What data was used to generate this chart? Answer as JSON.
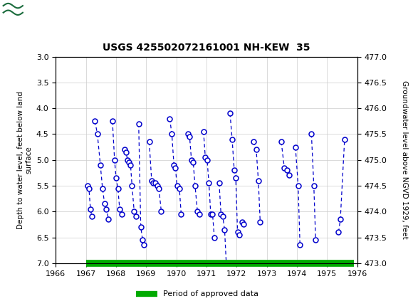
{
  "title": "USGS 425502072161001 NH-KEW  35",
  "header_color": "#1a6b3c",
  "left_ylabel": "Depth to water level, feet below land\nsurface",
  "right_ylabel": "Groundwater level above NGVD 1929, feet",
  "xlim": [
    1966,
    1976
  ],
  "ylim_left_bottom": 7.0,
  "ylim_left_top": 3.0,
  "ylim_right_bottom": 473.0,
  "ylim_right_top": 477.0,
  "xticks": [
    1966,
    1967,
    1968,
    1969,
    1970,
    1971,
    1972,
    1973,
    1974,
    1975,
    1976
  ],
  "yticks_left": [
    3.0,
    3.5,
    4.0,
    4.5,
    5.0,
    5.5,
    6.0,
    6.5,
    7.0
  ],
  "yticks_right": [
    473.0,
    473.5,
    474.0,
    474.5,
    475.0,
    475.5,
    476.0,
    476.5,
    477.0
  ],
  "line_color": "#0000cc",
  "legend_label": "Period of approved data",
  "legend_color": "#00aa00",
  "approved_xstart": 1967.0,
  "approved_xend": 1975.9,
  "segments": [
    [
      [
        1967.05,
        5.5
      ],
      [
        1967.1,
        5.55
      ],
      [
        1967.15,
        5.95
      ],
      [
        1967.2,
        6.1
      ]
    ],
    [
      [
        1967.3,
        4.25
      ],
      [
        1967.38,
        4.5
      ],
      [
        1967.48,
        5.1
      ],
      [
        1967.55,
        5.55
      ],
      [
        1967.62,
        5.85
      ],
      [
        1967.68,
        5.95
      ],
      [
        1967.75,
        6.15
      ]
    ],
    [
      [
        1967.88,
        4.25
      ],
      [
        1967.95,
        5.0
      ],
      [
        1968.0,
        5.35
      ],
      [
        1968.06,
        5.55
      ],
      [
        1968.12,
        5.95
      ],
      [
        1968.18,
        6.05
      ]
    ],
    [
      [
        1968.28,
        4.8
      ],
      [
        1968.33,
        4.85
      ],
      [
        1968.38,
        5.0
      ],
      [
        1968.43,
        5.05
      ],
      [
        1968.48,
        5.1
      ],
      [
        1968.53,
        5.5
      ],
      [
        1968.6,
        6.0
      ],
      [
        1968.65,
        6.1
      ]
    ],
    [
      [
        1968.75,
        4.3
      ],
      [
        1968.82,
        6.3
      ],
      [
        1968.88,
        6.55
      ],
      [
        1968.93,
        6.65
      ]
    ],
    [
      [
        1969.1,
        4.65
      ],
      [
        1969.18,
        5.4
      ],
      [
        1969.24,
        5.45
      ],
      [
        1969.3,
        5.45
      ],
      [
        1969.36,
        5.5
      ],
      [
        1969.42,
        5.55
      ],
      [
        1969.5,
        6.0
      ]
    ],
    [
      [
        1969.78,
        4.2
      ],
      [
        1969.85,
        4.5
      ],
      [
        1969.92,
        5.1
      ],
      [
        1969.97,
        5.15
      ],
      [
        1970.02,
        5.5
      ],
      [
        1970.1,
        5.55
      ],
      [
        1970.16,
        6.05
      ]
    ],
    [
      [
        1970.38,
        4.5
      ],
      [
        1970.44,
        4.55
      ],
      [
        1970.5,
        5.0
      ],
      [
        1970.56,
        5.05
      ],
      [
        1970.62,
        5.5
      ],
      [
        1970.7,
        6.0
      ],
      [
        1970.76,
        6.05
      ]
    ],
    [
      [
        1970.9,
        4.45
      ],
      [
        1970.96,
        4.95
      ],
      [
        1971.02,
        5.0
      ],
      [
        1971.08,
        5.45
      ],
      [
        1971.14,
        6.05
      ],
      [
        1971.2,
        6.05
      ],
      [
        1971.26,
        6.5
      ]
    ],
    [
      [
        1971.42,
        5.45
      ],
      [
        1971.48,
        6.05
      ],
      [
        1971.54,
        6.1
      ],
      [
        1971.6,
        6.35
      ],
      [
        1971.66,
        7.05
      ]
    ],
    [
      [
        1971.78,
        4.1
      ],
      [
        1971.85,
        4.6
      ],
      [
        1971.92,
        5.2
      ],
      [
        1971.97,
        5.35
      ],
      [
        1972.03,
        6.4
      ],
      [
        1972.09,
        6.45
      ]
    ],
    [
      [
        1972.18,
        6.2
      ],
      [
        1972.23,
        6.25
      ]
    ],
    [
      [
        1972.55,
        4.65
      ],
      [
        1972.65,
        4.8
      ],
      [
        1972.72,
        5.4
      ],
      [
        1972.78,
        6.2
      ]
    ],
    [
      [
        1973.48,
        4.65
      ],
      [
        1973.58,
        5.15
      ],
      [
        1973.66,
        5.2
      ],
      [
        1973.74,
        5.3
      ]
    ],
    [
      [
        1973.95,
        4.75
      ],
      [
        1974.04,
        5.5
      ],
      [
        1974.1,
        6.65
      ]
    ],
    [
      [
        1974.48,
        4.5
      ],
      [
        1974.56,
        5.5
      ],
      [
        1974.62,
        6.55
      ]
    ],
    [
      [
        1975.38,
        6.4
      ],
      [
        1975.44,
        6.15
      ],
      [
        1975.58,
        4.6
      ]
    ]
  ]
}
